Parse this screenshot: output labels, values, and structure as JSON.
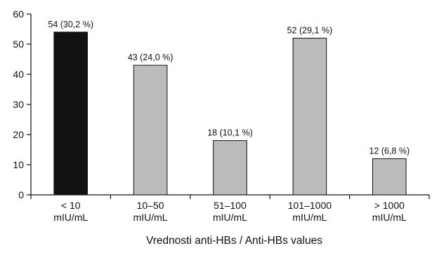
{
  "chart_data": {
    "type": "bar",
    "categories": [
      [
        "< 10",
        "mIU/mL"
      ],
      [
        "10–50",
        "mIU/mL"
      ],
      [
        "51–100",
        "mIU/mL"
      ],
      [
        "101–1000",
        "mIU/mL"
      ],
      [
        "> 1000",
        "mIU/mL"
      ]
    ],
    "values": [
      54,
      43,
      18,
      52,
      12
    ],
    "data_labels": [
      "54 (30,2 %)",
      "43 (24,0 %)",
      "18 (10,1 %)",
      "52 (29,1 %)",
      "12 (6,8 %)"
    ],
    "bar_colors": [
      "#111111",
      "#bbbbbb",
      "#bbbbbb",
      "#bbbbbb",
      "#bbbbbb"
    ],
    "xlabel": "Vrednosti anti-HBs / Anti-HBs values",
    "ylabel": "",
    "ylim": [
      0,
      60
    ],
    "yticks": [
      0,
      10,
      20,
      30,
      40,
      50,
      60
    ],
    "grid": false,
    "legend": "none"
  }
}
